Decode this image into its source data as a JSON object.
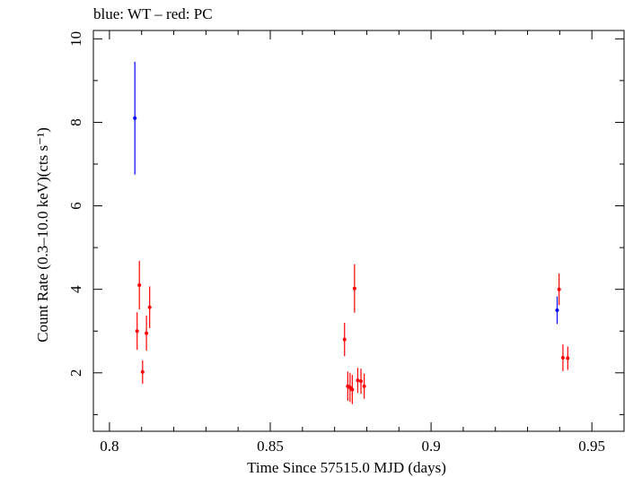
{
  "chart_data": {
    "type": "scatter",
    "title": "blue: WT – red: PC",
    "xlabel": "Time Since 57515.0 MJD (days)",
    "ylabel": "Count Rate (0.3–10.0 keV)(cts s⁻¹)",
    "xlim": [
      0.795,
      0.96
    ],
    "ylim": [
      0.6,
      10.2
    ],
    "xticks": [
      0.8,
      0.85,
      0.9,
      0.95
    ],
    "xtick_labels": [
      "0.8",
      "0.85",
      "0.9",
      "0.95"
    ],
    "yticks": [
      2,
      4,
      6,
      8,
      10
    ],
    "ytick_labels": [
      "2",
      "4",
      "6",
      "8",
      "10"
    ],
    "grid": false,
    "series": [
      {
        "color": "#0000ff",
        "points": [
          {
            "x": 0.8079,
            "y": 8.1,
            "err": 1.35
          },
          {
            "x": 0.9392,
            "y": 3.5,
            "err": 0.33
          }
        ]
      },
      {
        "color": "#ff0000",
        "points": [
          {
            "x": 0.8086,
            "y": 3.0,
            "err": 0.45
          },
          {
            "x": 0.8093,
            "y": 4.1,
            "err": 0.58
          },
          {
            "x": 0.8103,
            "y": 2.02,
            "err": 0.28
          },
          {
            "x": 0.8115,
            "y": 2.95,
            "err": 0.42
          },
          {
            "x": 0.8125,
            "y": 3.57,
            "err": 0.5
          },
          {
            "x": 0.8731,
            "y": 2.8,
            "err": 0.4
          },
          {
            "x": 0.8741,
            "y": 1.68,
            "err": 0.35
          },
          {
            "x": 0.8748,
            "y": 1.65,
            "err": 0.35
          },
          {
            "x": 0.8755,
            "y": 1.6,
            "err": 0.35
          },
          {
            "x": 0.8762,
            "y": 4.02,
            "err": 0.58
          },
          {
            "x": 0.8772,
            "y": 1.82,
            "err": 0.3
          },
          {
            "x": 0.8782,
            "y": 1.8,
            "err": 0.3
          },
          {
            "x": 0.8792,
            "y": 1.68,
            "err": 0.3
          },
          {
            "x": 0.9398,
            "y": 4.0,
            "err": 0.38
          },
          {
            "x": 0.941,
            "y": 2.36,
            "err": 0.32
          },
          {
            "x": 0.9425,
            "y": 2.35,
            "err": 0.28
          }
        ]
      }
    ]
  }
}
